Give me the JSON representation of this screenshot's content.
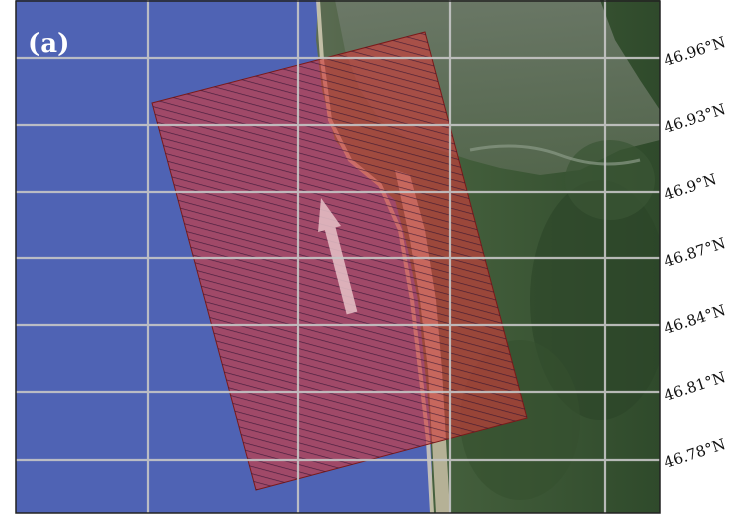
{
  "panel_label": "(a)",
  "latitude_labels": [
    "46.96°N",
    "46.93°N",
    "46.9°N",
    "46.87°N",
    "46.84°N",
    "46.81°N",
    "46.78°N"
  ],
  "colors": {
    "ocean": "#4f63b4",
    "land": "#3f5a3a",
    "shoreline_sand": "#c9bfa6",
    "grid": "#c6c6c6",
    "footprint": "#d23a3a",
    "footprint_hatch": "#2a1030",
    "arrow": "#e7c2c8"
  },
  "overlay": {
    "footprint": "rotated-rectangle-hatched",
    "arrow": "flight-direction-arrow"
  }
}
